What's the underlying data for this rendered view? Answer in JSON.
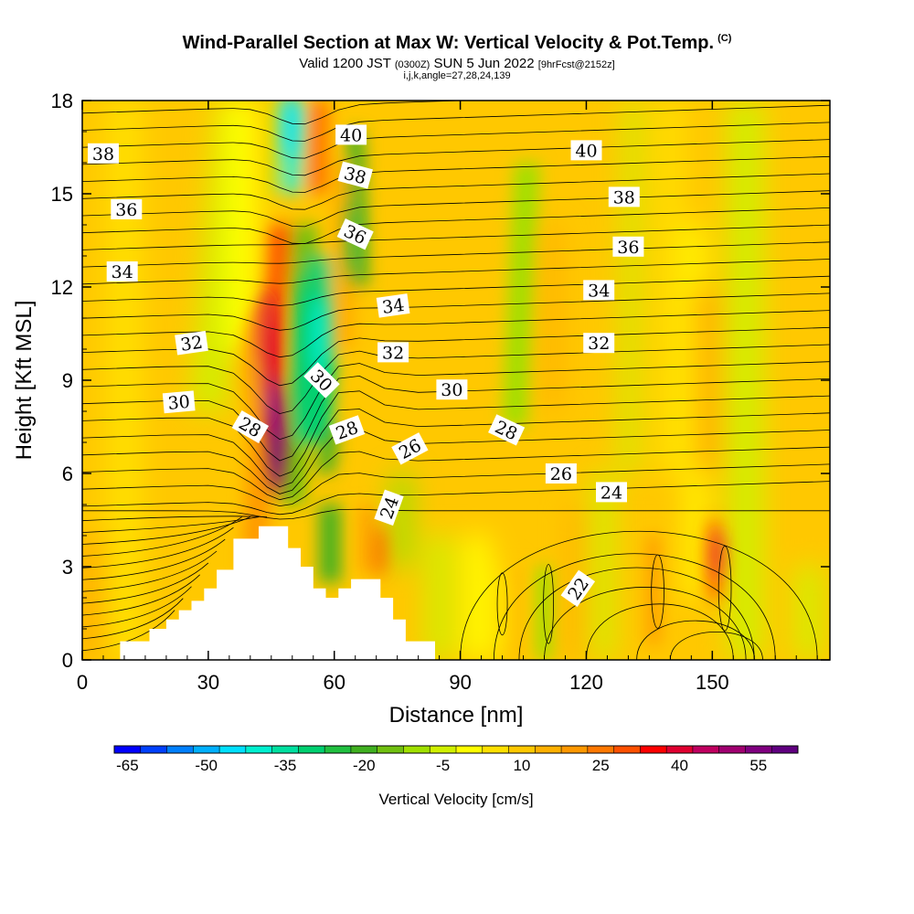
{
  "header": {
    "title": "Wind-Parallel Section at Max W: Vertical Velocity & Pot.Temp.",
    "copyright": "(C)",
    "valid_prefix": "Valid 1200 JST",
    "valid_utc": "(0300Z)",
    "valid_date": "SUN 5 Jun 2022",
    "forecast_info": "[9hrFcst@2152z]",
    "grid_info": "i,j,k,angle=27,28,24,139"
  },
  "chart_data": {
    "type": "heatmap",
    "xlabel": "Distance [nm]",
    "ylabel": "Height [Kft MSL]",
    "xlim": [
      0,
      178
    ],
    "ylim": [
      0,
      18
    ],
    "x_ticks": [
      0,
      30,
      60,
      90,
      120,
      150
    ],
    "y_ticks": [
      0,
      3,
      6,
      9,
      12,
      15,
      18
    ],
    "colorbar": {
      "title": "Vertical Velocity [cm/s]",
      "tick_labels": [
        "-65",
        "-50",
        "-35",
        "-20",
        "-5",
        "10",
        "25",
        "40",
        "55"
      ],
      "colors": [
        "#0000ff",
        "#0040ff",
        "#0080ff",
        "#00b0ff",
        "#00e0ff",
        "#00f0d0",
        "#00e0a0",
        "#00d070",
        "#20c040",
        "#40b020",
        "#70c010",
        "#a0e000",
        "#d0f000",
        "#ffff00",
        "#ffe000",
        "#ffc800",
        "#ffb000",
        "#ff9800",
        "#ff7800",
        "#ff5000",
        "#ff0000",
        "#e00030",
        "#c00060",
        "#a00070",
        "#800080",
        "#600080"
      ]
    },
    "theta_labels": [
      {
        "value": "38",
        "x": 5,
        "y": 16.3
      },
      {
        "value": "36",
        "x": 10.5,
        "y": 14.5
      },
      {
        "value": "34",
        "x": 9.5,
        "y": 12.5
      },
      {
        "value": "32",
        "x": 26,
        "y": 10.2
      },
      {
        "value": "30",
        "x": 23,
        "y": 8.3
      },
      {
        "value": "28",
        "x": 40,
        "y": 7.5
      },
      {
        "value": "40",
        "x": 64,
        "y": 16.9
      },
      {
        "value": "38",
        "x": 65,
        "y": 15.6
      },
      {
        "value": "36",
        "x": 65,
        "y": 13.7
      },
      {
        "value": "34",
        "x": 74,
        "y": 11.4
      },
      {
        "value": "32",
        "x": 74,
        "y": 9.9
      },
      {
        "value": "30",
        "x": 57,
        "y": 9.0
      },
      {
        "value": "28",
        "x": 63,
        "y": 7.4
      },
      {
        "value": "30",
        "x": 88,
        "y": 8.7
      },
      {
        "value": "26",
        "x": 78,
        "y": 6.8
      },
      {
        "value": "24",
        "x": 73,
        "y": 4.9
      },
      {
        "value": "28",
        "x": 101,
        "y": 7.4
      },
      {
        "value": "26",
        "x": 114,
        "y": 6.0
      },
      {
        "value": "24",
        "x": 126,
        "y": 5.4
      },
      {
        "value": "22",
        "x": 118,
        "y": 2.3
      },
      {
        "value": "40",
        "x": 120,
        "y": 16.4
      },
      {
        "value": "38",
        "x": 129,
        "y": 14.9
      },
      {
        "value": "36",
        "x": 130,
        "y": 13.3
      },
      {
        "value": "34",
        "x": 123,
        "y": 11.9
      },
      {
        "value": "32",
        "x": 123,
        "y": 10.2
      }
    ],
    "terrain_kft": [
      [
        0,
        0
      ],
      [
        9,
        0
      ],
      [
        9,
        0.6
      ],
      [
        16,
        0.6
      ],
      [
        16,
        1.0
      ],
      [
        20,
        1.0
      ],
      [
        20,
        1.3
      ],
      [
        23,
        1.3
      ],
      [
        23,
        1.6
      ],
      [
        26,
        1.6
      ],
      [
        26,
        1.9
      ],
      [
        29,
        1.9
      ],
      [
        29,
        2.3
      ],
      [
        32,
        2.3
      ],
      [
        32,
        2.9
      ],
      [
        36,
        2.9
      ],
      [
        36,
        3.9
      ],
      [
        42,
        3.9
      ],
      [
        42,
        4.3
      ],
      [
        49,
        4.3
      ],
      [
        49,
        3.6
      ],
      [
        52,
        3.6
      ],
      [
        52,
        3.0
      ],
      [
        55,
        3.0
      ],
      [
        55,
        2.3
      ],
      [
        58,
        2.3
      ],
      [
        58,
        2.0
      ],
      [
        61,
        2.0
      ],
      [
        61,
        2.3
      ],
      [
        64,
        2.3
      ],
      [
        64,
        2.6
      ],
      [
        71,
        2.6
      ],
      [
        71,
        2.0
      ],
      [
        74,
        2.0
      ],
      [
        74,
        1.3
      ],
      [
        77,
        1.3
      ],
      [
        77,
        0.6
      ],
      [
        84,
        0.6
      ],
      [
        84,
        0
      ],
      [
        178,
        0
      ]
    ],
    "updraft_cores": [
      {
        "x": 46,
        "y": 7.5,
        "w_cm_s": 60
      },
      {
        "x": 45,
        "y": 11.5,
        "w_cm_s": 40
      },
      {
        "x": 152,
        "y": 3.5,
        "w_cm_s": 40
      }
    ],
    "downdraft_cores": [
      {
        "x": 57,
        "y": 10.5,
        "w_cm_s": -35
      },
      {
        "x": 49,
        "y": 17.5,
        "w_cm_s": -40
      }
    ]
  }
}
